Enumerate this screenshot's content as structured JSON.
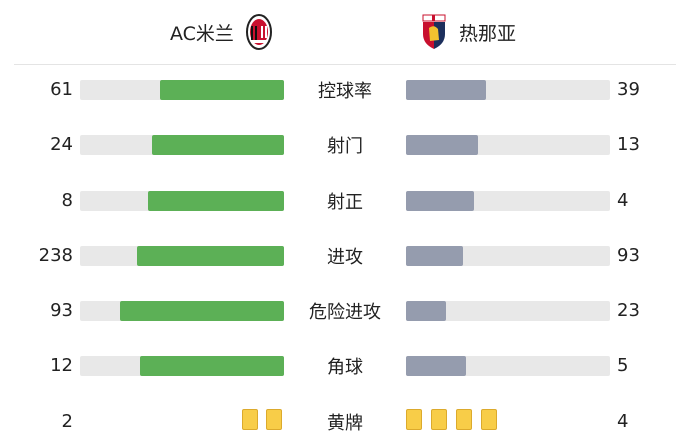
{
  "header": {
    "home_team": "AC米兰",
    "away_team": "热那亚",
    "home_crest": "ac-milan-crest",
    "away_crest": "genoa-crest"
  },
  "colors": {
    "home_bar": "#5cb056",
    "away_bar": "#959cae",
    "track": "#e8e8e8",
    "yellow_card": "#f8cd48"
  },
  "stats": [
    {
      "label": "控球率",
      "home": 61,
      "away": 39
    },
    {
      "label": "射门",
      "home": 24,
      "away": 13
    },
    {
      "label": "射正",
      "home": 8,
      "away": 4
    },
    {
      "label": "进攻",
      "home": 238,
      "away": 93
    },
    {
      "label": "危险进攻",
      "home": 93,
      "away": 23
    },
    {
      "label": "角球",
      "home": 12,
      "away": 5
    }
  ],
  "yellow_cards": {
    "label": "黄牌",
    "home": 2,
    "away": 4
  }
}
